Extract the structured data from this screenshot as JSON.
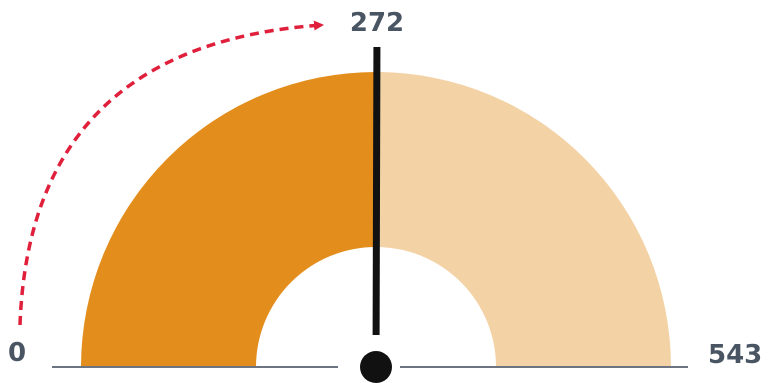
{
  "chart_data": {
    "type": "gauge",
    "min": 0,
    "max": 543,
    "value": 272,
    "labels": {
      "min": "0",
      "max": "543",
      "value": "272"
    },
    "colors": {
      "filled": "#e38e1c",
      "remaining": "#f3d2a5",
      "needle": "#111111",
      "arrow": "#e01f3b",
      "baseline": "#6b7480",
      "label": "#4a5563"
    }
  }
}
